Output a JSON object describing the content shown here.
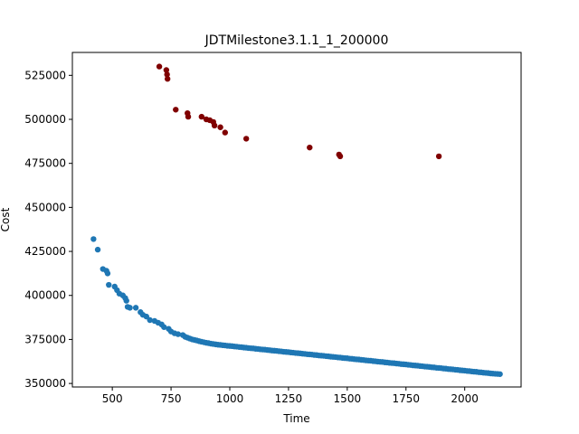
{
  "chart_data": {
    "type": "scatter",
    "title": "JDTMilestone3.1.1_1_200000",
    "xlabel": "Time",
    "ylabel": "Cost",
    "xlim": [
      330,
      2240
    ],
    "ylim": [
      348000,
      538000
    ],
    "x_ticks": [
      500,
      750,
      1000,
      1250,
      1500,
      1750,
      2000
    ],
    "y_ticks": [
      350000,
      375000,
      400000,
      425000,
      450000,
      475000,
      500000,
      525000
    ],
    "grid": false,
    "legend": "none",
    "series": [
      {
        "color": "#1f77b4",
        "points": [
          [
            420,
            432000
          ],
          [
            438,
            426000
          ],
          [
            460,
            415000
          ],
          [
            475,
            414000
          ],
          [
            480,
            412500
          ],
          [
            485,
            406000
          ],
          [
            510,
            405000
          ],
          [
            520,
            403000
          ],
          [
            530,
            401000
          ],
          [
            545,
            400000
          ],
          [
            555,
            398500
          ],
          [
            560,
            397000
          ],
          [
            565,
            393500
          ],
          [
            575,
            393000
          ],
          [
            600,
            393000
          ],
          [
            620,
            390500
          ],
          [
            630,
            389000
          ],
          [
            645,
            388000
          ],
          [
            660,
            386000
          ],
          [
            680,
            385500
          ],
          [
            695,
            384500
          ],
          [
            710,
            383500
          ],
          [
            720,
            382000
          ],
          [
            740,
            381000
          ],
          [
            750,
            379500
          ],
          [
            765,
            378500
          ],
          [
            780,
            378000
          ],
          [
            800,
            377500
          ],
          [
            810,
            376500
          ],
          [
            820,
            376000
          ],
          [
            830,
            375500
          ],
          [
            840,
            375000
          ],
          [
            850,
            374700
          ],
          [
            860,
            374400
          ],
          [
            870,
            374000
          ],
          [
            880,
            373700
          ],
          [
            890,
            373400
          ],
          [
            900,
            373100
          ],
          [
            910,
            372900
          ],
          [
            920,
            372600
          ],
          [
            930,
            372400
          ],
          [
            940,
            372200
          ],
          [
            950,
            372000
          ],
          [
            960,
            371900
          ],
          [
            970,
            371700
          ],
          [
            980,
            371600
          ],
          [
            990,
            371400
          ],
          [
            1000,
            371300
          ],
          [
            1010,
            371200
          ],
          [
            1020,
            371000
          ],
          [
            1030,
            370900
          ],
          [
            1040,
            370700
          ],
          [
            1050,
            370600
          ],
          [
            1060,
            370400
          ],
          [
            1070,
            370300
          ],
          [
            1080,
            370100
          ],
          [
            1090,
            370000
          ],
          [
            1100,
            369900
          ],
          [
            1110,
            369700
          ],
          [
            1120,
            369600
          ],
          [
            1130,
            369400
          ],
          [
            1140,
            369300
          ],
          [
            1150,
            369200
          ],
          [
            1160,
            369000
          ],
          [
            1170,
            368900
          ],
          [
            1180,
            368700
          ],
          [
            1190,
            368600
          ],
          [
            1200,
            368500
          ],
          [
            1210,
            368300
          ],
          [
            1220,
            368200
          ],
          [
            1230,
            368000
          ],
          [
            1240,
            367900
          ],
          [
            1250,
            367800
          ],
          [
            1260,
            367600
          ],
          [
            1270,
            367500
          ],
          [
            1280,
            367300
          ],
          [
            1290,
            367200
          ],
          [
            1300,
            367100
          ],
          [
            1310,
            366900
          ],
          [
            1320,
            366800
          ],
          [
            1330,
            366600
          ],
          [
            1340,
            366500
          ],
          [
            1350,
            366400
          ],
          [
            1360,
            366200
          ],
          [
            1370,
            366100
          ],
          [
            1380,
            365900
          ],
          [
            1390,
            365800
          ],
          [
            1400,
            365700
          ],
          [
            1410,
            365500
          ],
          [
            1420,
            365400
          ],
          [
            1430,
            365200
          ],
          [
            1440,
            365100
          ],
          [
            1450,
            365000
          ],
          [
            1460,
            364800
          ],
          [
            1470,
            364700
          ],
          [
            1480,
            364500
          ],
          [
            1490,
            364400
          ],
          [
            1500,
            364300
          ],
          [
            1510,
            364100
          ],
          [
            1520,
            364000
          ],
          [
            1530,
            363800
          ],
          [
            1540,
            363700
          ],
          [
            1550,
            363600
          ],
          [
            1560,
            363400
          ],
          [
            1570,
            363300
          ],
          [
            1580,
            363100
          ],
          [
            1590,
            363000
          ],
          [
            1600,
            362900
          ],
          [
            1610,
            362700
          ],
          [
            1620,
            362600
          ],
          [
            1630,
            362400
          ],
          [
            1640,
            362300
          ],
          [
            1650,
            362200
          ],
          [
            1660,
            362000
          ],
          [
            1670,
            361900
          ],
          [
            1680,
            361700
          ],
          [
            1690,
            361600
          ],
          [
            1700,
            361500
          ],
          [
            1710,
            361300
          ],
          [
            1720,
            361200
          ],
          [
            1730,
            361000
          ],
          [
            1740,
            360900
          ],
          [
            1750,
            360800
          ],
          [
            1760,
            360600
          ],
          [
            1770,
            360500
          ],
          [
            1780,
            360300
          ],
          [
            1790,
            360200
          ],
          [
            1800,
            360100
          ],
          [
            1810,
            359900
          ],
          [
            1820,
            359800
          ],
          [
            1830,
            359600
          ],
          [
            1840,
            359500
          ],
          [
            1850,
            359400
          ],
          [
            1860,
            359200
          ],
          [
            1870,
            359100
          ],
          [
            1880,
            358900
          ],
          [
            1890,
            358800
          ],
          [
            1900,
            358700
          ],
          [
            1910,
            358500
          ],
          [
            1920,
            358400
          ],
          [
            1930,
            358200
          ],
          [
            1940,
            358100
          ],
          [
            1950,
            358000
          ],
          [
            1960,
            357800
          ],
          [
            1970,
            357700
          ],
          [
            1980,
            357500
          ],
          [
            1990,
            357400
          ],
          [
            2000,
            357300
          ],
          [
            2010,
            357100
          ],
          [
            2020,
            357000
          ],
          [
            2030,
            356800
          ],
          [
            2040,
            356700
          ],
          [
            2050,
            356600
          ],
          [
            2060,
            356400
          ],
          [
            2070,
            356300
          ],
          [
            2080,
            356100
          ],
          [
            2090,
            356000
          ],
          [
            2100,
            355900
          ],
          [
            2110,
            355700
          ],
          [
            2120,
            355600
          ],
          [
            2130,
            355500
          ],
          [
            2140,
            355400
          ],
          [
            2150,
            355300
          ]
        ]
      },
      {
        "color": "#800000",
        "points": [
          [
            700,
            530000
          ],
          [
            730,
            528000
          ],
          [
            733,
            525500
          ],
          [
            735,
            523000
          ],
          [
            770,
            505500
          ],
          [
            820,
            503500
          ],
          [
            823,
            501500
          ],
          [
            880,
            501500
          ],
          [
            900,
            500000
          ],
          [
            915,
            499500
          ],
          [
            930,
            498500
          ],
          [
            935,
            496500
          ],
          [
            960,
            495500
          ],
          [
            980,
            492500
          ],
          [
            1070,
            489000
          ],
          [
            1340,
            484000
          ],
          [
            1465,
            480000
          ],
          [
            1470,
            479000
          ],
          [
            1890,
            479000
          ]
        ]
      }
    ]
  }
}
